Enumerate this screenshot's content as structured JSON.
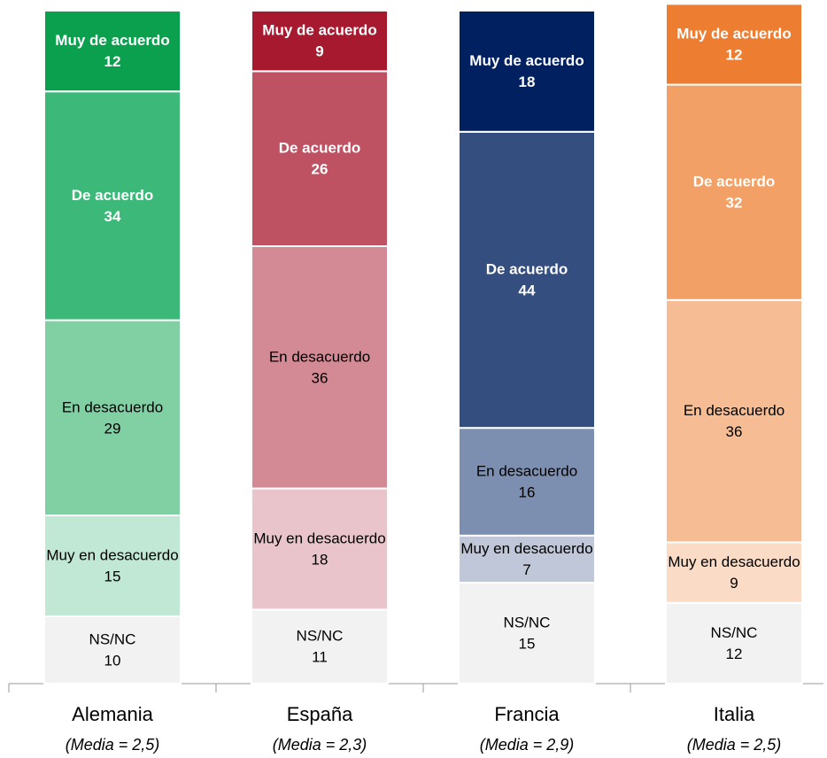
{
  "chart_data": {
    "type": "stacked_bar",
    "categories": [
      "Alemania",
      "España",
      "Francia",
      "Italia"
    ],
    "category_notes": [
      "(Media = 2,5)",
      "(Media = 2,3)",
      "(Media = 2,9)",
      "(Media = 2,5)"
    ],
    "ylim": [
      0,
      100
    ],
    "series": [
      {
        "name": "NS/NC",
        "colors": [
          "#f2f2f2",
          "#f2f2f2",
          "#f2f2f2",
          "#f2f2f2"
        ],
        "values": [
          10,
          11,
          15,
          12
        ]
      },
      {
        "name": "Muy en desacuerdo",
        "colors": [
          "#c0e8d4",
          "#e9c4ca",
          "#bfc7d8",
          "#fadcc6"
        ],
        "values": [
          15,
          18,
          7,
          9
        ]
      },
      {
        "name": "En desacuerdo",
        "colors": [
          "#80d0a4",
          "#d38a94",
          "#7d8fb0",
          "#f6bd94"
        ],
        "values": [
          29,
          36,
          16,
          36
        ]
      },
      {
        "name": "De acuerdo",
        "colors": [
          "#3cb878",
          "#be5263",
          "#344e80",
          "#f2a066"
        ],
        "values": [
          34,
          26,
          44,
          32
        ]
      },
      {
        "name": "Muy de acuerdo",
        "colors": [
          "#0aa04e",
          "#a6192e",
          "#002060",
          "#ed7d31"
        ],
        "values": [
          12,
          9,
          18,
          12
        ]
      }
    ]
  }
}
